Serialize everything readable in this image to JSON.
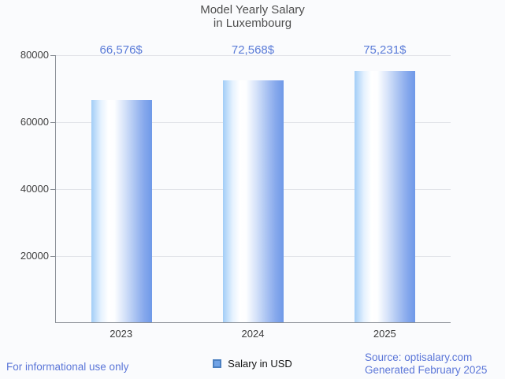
{
  "header": {
    "title_line1": "Model Yearly Salary",
    "title_line2": "in Luxembourg"
  },
  "chart_data": {
    "type": "bar",
    "title": "Model Yearly Salary in Luxembourg",
    "categories": [
      "2023",
      "2024",
      "2025"
    ],
    "series": [
      {
        "name": "Salary in USD",
        "values": [
          66576,
          72568,
          75231
        ]
      }
    ],
    "value_labels": [
      "66,576$",
      "72,568$",
      "75,231$"
    ],
    "xlabel": "",
    "ylabel": "",
    "ylim": [
      0,
      80000
    ],
    "yticks": [
      20000,
      40000,
      60000,
      80000
    ],
    "grid": "horizontal",
    "legend_position": "bottom"
  },
  "legend": {
    "label": "Salary in USD"
  },
  "footer": {
    "left": "For informational use only",
    "source": "Source: optisalary.com",
    "generated": "Generated February 2025"
  },
  "colors": {
    "accent_text": "#5b7cd8",
    "bar_gradient_left": "#a2cdf7",
    "bar_gradient_mid": "#ffffff",
    "bar_gradient_right": "#6f99e8",
    "legend_swatch_fill": "#71a3e6",
    "legend_swatch_border": "#4c80c1",
    "axis_line": "#898e95",
    "gridline": "#e2e4e9",
    "title_text": "#4e4e4e",
    "tick_text": "#3f3f3f",
    "background": "#fafbfd"
  }
}
